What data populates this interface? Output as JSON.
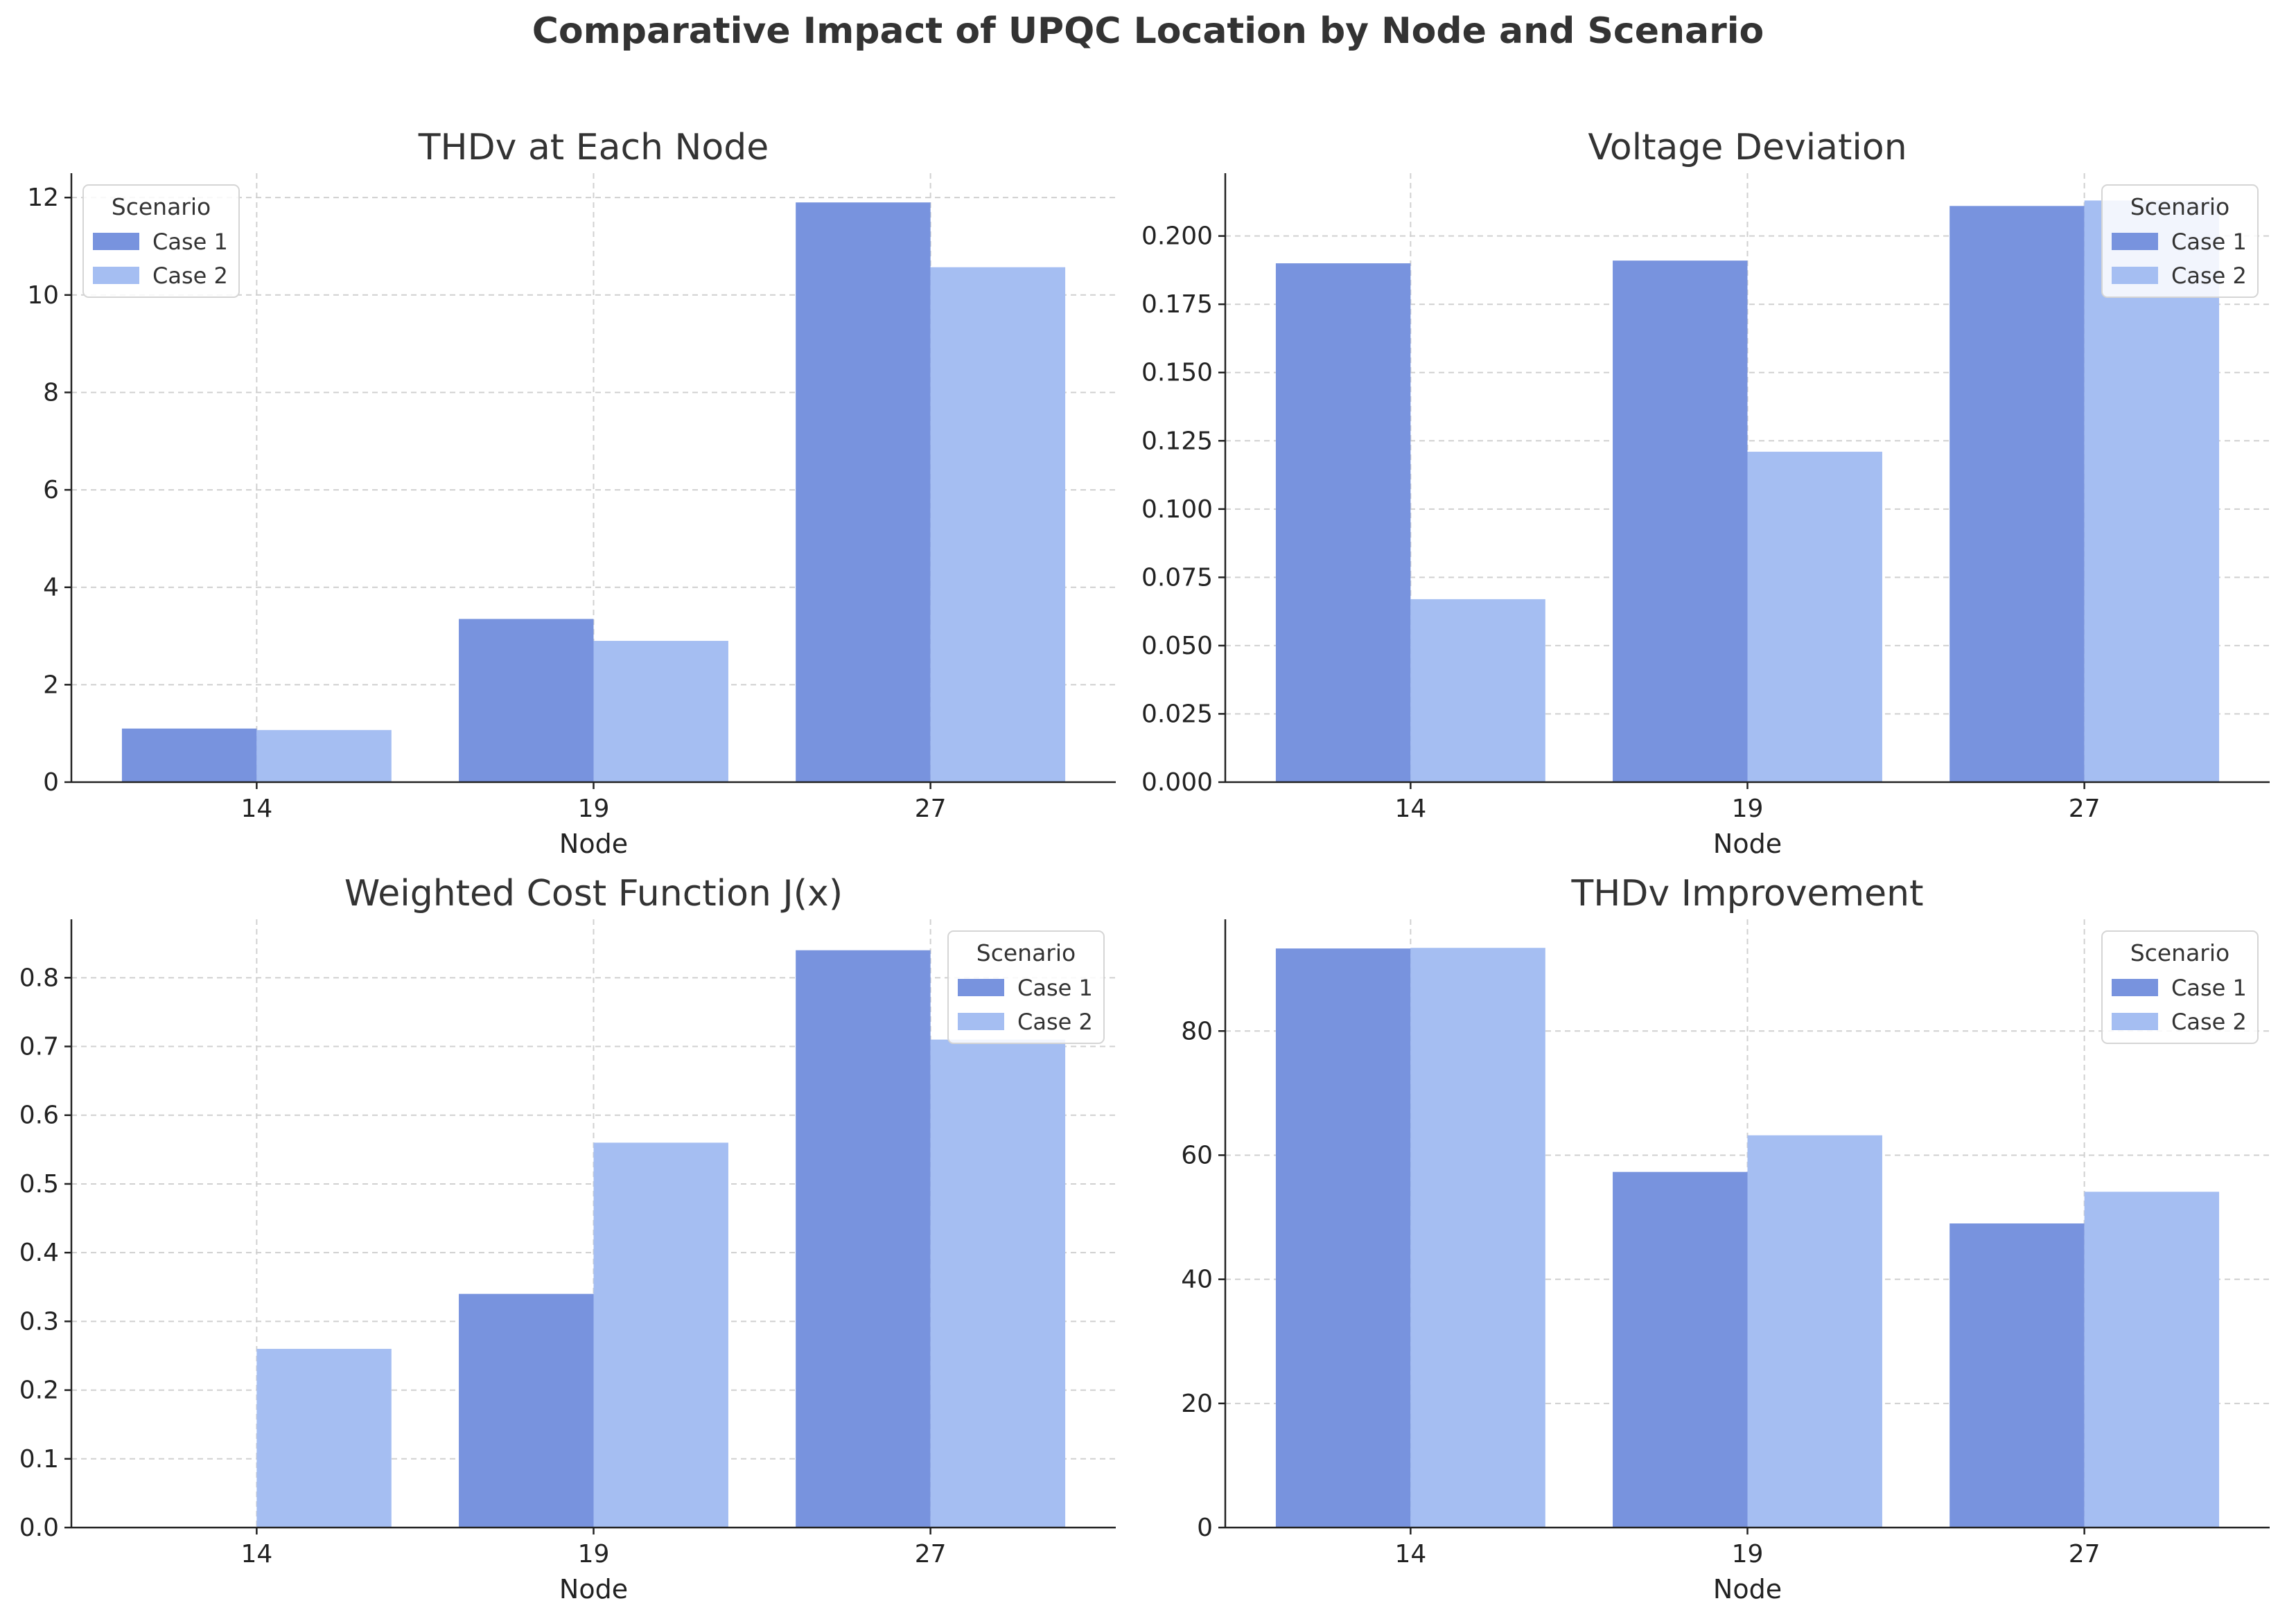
{
  "suptitle": "Comparative Impact of UPQC Location by Node and Scenario",
  "colors": {
    "case1": "#7893DE",
    "case2": "#A5BEF2",
    "grid": "#D0D0D0",
    "axis": "#222222"
  },
  "chart_data": [
    {
      "type": "bar",
      "title": "THDv at Each Node",
      "xlabel": "Node",
      "ylabel": "",
      "categories": [
        "14",
        "19",
        "27"
      ],
      "ylim": [
        0,
        12.5
      ],
      "yticks": [
        "0",
        "2",
        "4",
        "6",
        "8",
        "10",
        "12"
      ],
      "ytick_values": [
        0,
        2,
        4,
        6,
        8,
        10,
        12
      ],
      "legend": {
        "title": "Scenario",
        "position": "top-left"
      },
      "series": [
        {
          "name": "Case 1",
          "values": [
            1.1,
            3.35,
            11.9
          ]
        },
        {
          "name": "Case 2",
          "values": [
            1.07,
            2.9,
            10.57
          ]
        }
      ]
    },
    {
      "type": "bar",
      "title": "Voltage Deviation",
      "xlabel": "Node",
      "ylabel": "",
      "categories": [
        "14",
        "19",
        "27"
      ],
      "ylim": [
        0,
        0.223
      ],
      "yticks": [
        "0.000",
        "0.025",
        "0.050",
        "0.075",
        "0.100",
        "0.125",
        "0.150",
        "0.175",
        "0.200"
      ],
      "ytick_values": [
        0,
        0.025,
        0.05,
        0.075,
        0.1,
        0.125,
        0.15,
        0.175,
        0.2
      ],
      "legend": {
        "title": "Scenario",
        "position": "top-right"
      },
      "series": [
        {
          "name": "Case 1",
          "values": [
            0.19,
            0.191,
            0.211
          ]
        },
        {
          "name": "Case 2",
          "values": [
            0.067,
            0.121,
            0.213
          ]
        }
      ]
    },
    {
      "type": "bar",
      "title": "Weighted Cost Function J(x)",
      "xlabel": "Node",
      "ylabel": "",
      "categories": [
        "14",
        "19",
        "27"
      ],
      "ylim": [
        0,
        0.885
      ],
      "yticks": [
        "0.0",
        "0.1",
        "0.2",
        "0.3",
        "0.4",
        "0.5",
        "0.6",
        "0.7",
        "0.8"
      ],
      "ytick_values": [
        0,
        0.1,
        0.2,
        0.3,
        0.4,
        0.5,
        0.6,
        0.7,
        0.8
      ],
      "legend": {
        "title": "Scenario",
        "position": "top-right"
      },
      "series": [
        {
          "name": "Case 1",
          "values": [
            0.0,
            0.34,
            0.84
          ]
        },
        {
          "name": "Case 2",
          "values": [
            0.26,
            0.56,
            0.71
          ]
        }
      ]
    },
    {
      "type": "bar",
      "title": "THDv Improvement",
      "xlabel": "Node",
      "ylabel": "",
      "categories": [
        "14",
        "19",
        "27"
      ],
      "ylim": [
        0,
        98
      ],
      "yticks": [
        "0",
        "20",
        "40",
        "60",
        "80"
      ],
      "ytick_values": [
        0,
        20,
        40,
        60,
        80
      ],
      "legend": {
        "title": "Scenario",
        "position": "top-right"
      },
      "series": [
        {
          "name": "Case 1",
          "values": [
            93.3,
            57.3,
            49.0
          ]
        },
        {
          "name": "Case 2",
          "values": [
            93.4,
            63.2,
            54.1
          ]
        }
      ]
    }
  ]
}
